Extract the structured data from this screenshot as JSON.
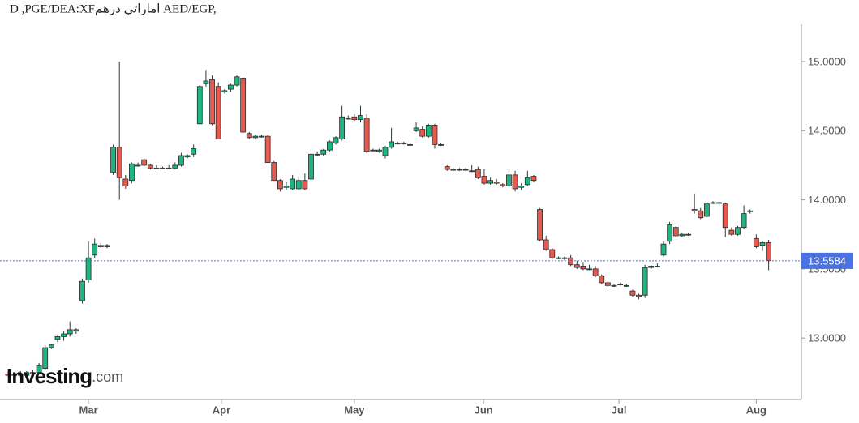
{
  "chart_data": {
    "type": "candlestick",
    "title": "D ,PGE/DEA:XFاماراتي درهم AED/EGP,",
    "watermark": {
      "brand": "Investing",
      "suffix": ".com"
    },
    "up_color": "#1fb57e",
    "down_color": "#e85a4f",
    "last_price": {
      "value": 13.5584,
      "label": "13.5584",
      "color": "#4a72e0"
    },
    "xlim": [
      -1.31,
      128.3
    ],
    "xticks": [
      {
        "value": 13,
        "label": "Mar"
      },
      {
        "value": 34.5,
        "label": "Apr"
      },
      {
        "value": 56,
        "label": "May"
      },
      {
        "value": 76.9,
        "label": "Jun"
      },
      {
        "value": 98.8,
        "label": "Jul"
      },
      {
        "value": 121,
        "label": "Aug"
      }
    ],
    "ylim": [
      12.555,
      15.27
    ],
    "yticks": [
      {
        "value": 13,
        "label": "13.0000"
      },
      {
        "value": 13.5,
        "label": "13.5000"
      },
      {
        "value": 14,
        "label": "14.0000"
      },
      {
        "value": 14.5,
        "label": "14.5000"
      },
      {
        "value": 15,
        "label": "15.0000"
      }
    ],
    "open": [
      12.74,
      12.73,
      12.74,
      12.73,
      12.75,
      12.75,
      12.78,
      12.93,
      12.99,
      13.01,
      13.03,
      13.05,
      13.27,
      13.42,
      13.6,
      13.67,
      13.67,
      14.2,
      14.38,
      14.15,
      14.14,
      14.25,
      14.29,
      14.25,
      14.23,
      14.23,
      14.23,
      14.23,
      14.25,
      14.31,
      14.33,
      14.55,
      14.84,
      14.87,
      14.82,
      14.78,
      14.8,
      14.83,
      14.88,
      14.48,
      14.45,
      14.46,
      14.46,
      14.27,
      14.14,
      14.09,
      14.08,
      14.08,
      14.14,
      14.15,
      14.33,
      14.33,
      14.36,
      14.41,
      14.44,
      14.59,
      14.6,
      14.58,
      14.59,
      14.36,
      14.35,
      14.32,
      14.38,
      14.41,
      14.41,
      14.4,
      14.5,
      14.51,
      14.46,
      14.54,
      14.4,
      14.24,
      14.22,
      14.22,
      14.22,
      14.21,
      14.22,
      14.17,
      14.12,
      14.13,
      14.11,
      14.1,
      14.18,
      14.09,
      14.11,
      14.17,
      13.93,
      13.71,
      13.64,
      13.58,
      13.58,
      13.58,
      13.53,
      13.52,
      13.5,
      13.5,
      13.45,
      13.4,
      13.38,
      13.39,
      13.38,
      13.34,
      13.31,
      13.31,
      13.51,
      13.52,
      13.6,
      13.7,
      13.8,
      13.74,
      13.75,
      13.93,
      13.92,
      13.88,
      13.98,
      13.98,
      13.97,
      13.78,
      13.75,
      13.8,
      13.92,
      13.72,
      13.67,
      13.69
    ],
    "high": [
      12.76,
      12.75,
      12.76,
      12.76,
      12.77,
      12.82,
      12.95,
      12.96,
      13.02,
      13.05,
      13.12,
      13.07,
      13.43,
      13.7,
      13.72,
      13.69,
      13.68,
      14.4,
      15.0,
      14.18,
      14.27,
      14.27,
      14.3,
      14.26,
      14.25,
      14.24,
      14.25,
      14.27,
      14.34,
      14.33,
      14.4,
      14.83,
      14.94,
      14.9,
      14.85,
      14.8,
      14.84,
      14.9,
      14.89,
      14.49,
      14.47,
      14.47,
      14.47,
      14.28,
      14.15,
      14.13,
      14.18,
      14.16,
      14.19,
      14.34,
      14.35,
      14.37,
      14.43,
      14.46,
      14.68,
      14.61,
      14.62,
      14.68,
      14.62,
      14.37,
      14.37,
      14.39,
      14.52,
      14.42,
      14.42,
      14.41,
      14.56,
      14.53,
      14.55,
      14.55,
      14.41,
      14.25,
      14.23,
      14.23,
      14.23,
      14.25,
      14.24,
      14.22,
      14.16,
      14.15,
      14.12,
      14.22,
      14.21,
      14.12,
      14.21,
      14.18,
      13.94,
      13.74,
      13.65,
      13.59,
      13.59,
      13.6,
      13.56,
      13.55,
      13.53,
      13.52,
      13.46,
      13.41,
      13.39,
      13.4,
      13.39,
      13.35,
      13.32,
      13.53,
      13.53,
      13.54,
      13.7,
      13.84,
      13.81,
      13.76,
      13.76,
      14.04,
      13.94,
      13.98,
      13.99,
      13.99,
      13.98,
      13.8,
      13.81,
      13.96,
      13.93,
      13.75,
      13.7,
      13.71
    ],
    "low": [
      12.72,
      12.71,
      12.72,
      12.72,
      12.73,
      12.74,
      12.77,
      12.92,
      12.97,
      12.98,
      13.01,
      13.03,
      13.25,
      13.4,
      13.58,
      13.65,
      13.65,
      14.18,
      14.0,
      14.08,
      14.12,
      14.24,
      14.24,
      14.22,
      14.22,
      14.22,
      14.22,
      14.22,
      14.24,
      14.3,
      14.31,
      14.55,
      14.82,
      14.54,
      14.44,
      14.77,
      14.78,
      14.82,
      14.49,
      14.44,
      14.44,
      14.45,
      14.27,
      14.14,
      14.06,
      14.07,
      14.07,
      14.07,
      14.07,
      14.14,
      14.32,
      14.32,
      14.35,
      14.4,
      14.43,
      14.58,
      14.57,
      14.56,
      14.34,
      14.35,
      14.34,
      14.3,
      14.37,
      14.4,
      14.4,
      14.39,
      14.49,
      14.45,
      14.45,
      14.37,
      14.39,
      14.21,
      14.21,
      14.21,
      14.21,
      14.2,
      14.15,
      14.11,
      14.11,
      14.11,
      14.09,
      14.09,
      14.06,
      14.07,
      14.1,
      14.13,
      13.7,
      13.63,
      13.57,
      13.57,
      13.56,
      13.52,
      13.5,
      13.49,
      13.49,
      13.44,
      13.39,
      13.37,
      13.37,
      13.38,
      13.37,
      13.3,
      13.28,
      13.29,
      13.5,
      13.51,
      13.59,
      13.68,
      13.73,
      13.73,
      13.74,
      13.9,
      13.86,
      13.87,
      13.97,
      13.96,
      13.73,
      13.74,
      13.74,
      13.79,
      13.9,
      13.65,
      13.63,
      13.49
    ],
    "close": [
      12.73,
      12.74,
      12.73,
      12.75,
      12.74,
      12.8,
      12.93,
      12.95,
      13.01,
      13.03,
      13.06,
      13.06,
      13.41,
      13.58,
      13.68,
      13.66,
      13.66,
      14.38,
      14.16,
      14.1,
      14.26,
      14.25,
      14.25,
      14.23,
      14.23,
      14.23,
      14.23,
      14.25,
      14.32,
      14.32,
      14.37,
      14.82,
      14.86,
      14.55,
      14.44,
      14.79,
      14.83,
      14.89,
      14.49,
      14.45,
      14.46,
      14.46,
      14.27,
      14.14,
      14.08,
      14.1,
      14.15,
      14.14,
      14.08,
      14.33,
      14.33,
      14.36,
      14.42,
      14.45,
      14.6,
      14.59,
      14.58,
      14.61,
      14.35,
      14.36,
      14.36,
      14.38,
      14.42,
      14.41,
      14.41,
      14.4,
      14.52,
      14.46,
      14.54,
      14.4,
      14.4,
      14.22,
      14.22,
      14.22,
      14.22,
      14.21,
      14.16,
      14.12,
      14.14,
      14.12,
      14.1,
      14.18,
      14.08,
      14.1,
      14.16,
      14.14,
      13.71,
      13.64,
      13.58,
      13.58,
      13.58,
      13.53,
      13.51,
      13.5,
      13.5,
      13.45,
      13.4,
      13.38,
      13.38,
      13.39,
      13.38,
      13.31,
      13.3,
      13.51,
      13.52,
      13.52,
      13.68,
      13.82,
      13.74,
      13.75,
      13.75,
      13.92,
      13.87,
      13.97,
      13.98,
      13.98,
      13.8,
      13.75,
      13.8,
      13.9,
      13.92,
      13.66,
      13.69,
      13.56
    ]
  }
}
